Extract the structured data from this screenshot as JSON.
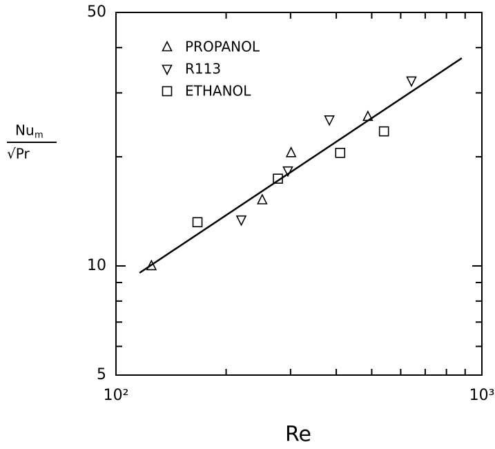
{
  "chart_data": {
    "type": "scatter",
    "xlabel": "Re",
    "ylabel": {
      "numerator": "Nu",
      "numerator_sub": "m",
      "denominator": "√Pr"
    },
    "xscale": "log",
    "yscale": "log",
    "xlim": [
      100,
      1000
    ],
    "ylim": [
      5,
      50
    ],
    "xticks": [
      {
        "value": 100,
        "label": "10²"
      },
      {
        "value": 1000,
        "label": "10³"
      }
    ],
    "xminorticks": [
      200,
      300,
      400,
      500,
      600,
      700,
      800,
      900
    ],
    "yticks": [
      5,
      10,
      50
    ],
    "yminorticks": [
      6,
      7,
      8,
      9,
      20,
      30,
      40
    ],
    "legend": "upper left",
    "series": [
      {
        "name": "PROPANOL",
        "marker": "triangle",
        "color": "#000000",
        "x": [
          125,
          251,
          301,
          488
        ],
        "values": [
          10,
          15.2,
          20.5,
          25.8
        ]
      },
      {
        "name": "R113",
        "marker": "triangle-down",
        "color": "#000000",
        "x": [
          220,
          295,
          383,
          642
        ],
        "values": [
          13.4,
          18.3,
          25.3,
          32.4
        ]
      },
      {
        "name": "ETHANOL",
        "marker": "square",
        "color": "#000000",
        "x": [
          167,
          277,
          410,
          540
        ],
        "values": [
          13.2,
          17.4,
          20.5,
          23.5
        ]
      }
    ],
    "fit_line": {
      "color": "#000000",
      "x": [
        116,
        881
      ],
      "values": [
        9.57,
        37.4
      ]
    }
  }
}
